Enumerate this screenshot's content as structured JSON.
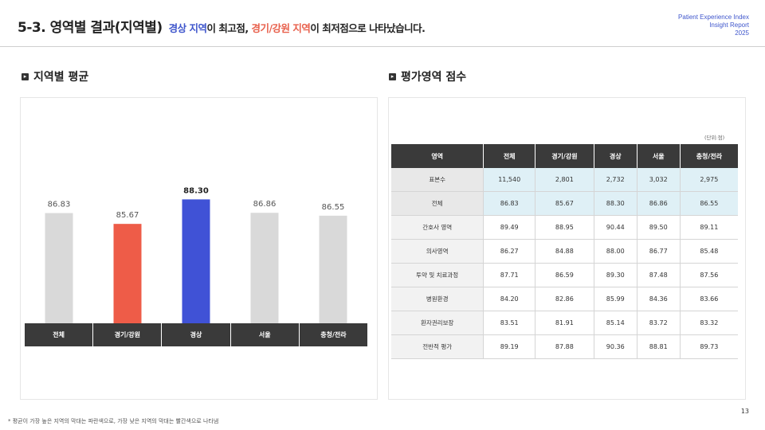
{
  "header": {
    "title": "5-3. 영역별 결과(지역별)",
    "highlight_best": "경상 지역",
    "text_mid": "이 최고점, ",
    "highlight_worst": "경기/강원 지역",
    "text_end": "이 최저점으로 나타났습니다.",
    "brand_line1": "Patient Experience Index",
    "brand_line2": "Insight Report",
    "brand_line3": "2025"
  },
  "left_section": {
    "heading": "지역별 평균"
  },
  "right_section": {
    "heading": "평가영역 점수",
    "unit": "(단위:점)"
  },
  "chart_data": {
    "type": "bar",
    "categories": [
      "전체",
      "경기/강원",
      "경상",
      "서울",
      "충청/전라"
    ],
    "values": [
      86.83,
      85.67,
      88.3,
      86.86,
      86.55
    ],
    "value_labels": [
      "86.83",
      "85.67",
      "88.30",
      "86.86",
      "86.55"
    ],
    "bar_colors": [
      "#d9d9d9",
      "#ee5c48",
      "#4052d6",
      "#d9d9d9",
      "#d9d9d9"
    ],
    "ylim": [
      0,
      100
    ],
    "grid": false
  },
  "table": {
    "headers": [
      "영역",
      "전체",
      "경기/강원",
      "경상",
      "서울",
      "충청/전라"
    ],
    "rows": [
      {
        "label": "표본수",
        "values": [
          "11,540",
          "2,801",
          "2,732",
          "3,032",
          "2,975"
        ],
        "highlight": true
      },
      {
        "label": "전체",
        "values": [
          "86.83",
          "85.67",
          "88.30",
          "86.86",
          "86.55"
        ],
        "highlight": true
      },
      {
        "label": "간호사 영역",
        "values": [
          "89.49",
          "88.95",
          "90.44",
          "89.50",
          "89.11"
        ]
      },
      {
        "label": "의사영역",
        "values": [
          "86.27",
          "84.88",
          "88.00",
          "86.77",
          "85.48"
        ]
      },
      {
        "label": "투약 및 치료과정",
        "values": [
          "87.71",
          "86.59",
          "89.30",
          "87.48",
          "87.56"
        ]
      },
      {
        "label": "병원환경",
        "values": [
          "84.20",
          "82.86",
          "85.99",
          "84.36",
          "83.66"
        ]
      },
      {
        "label": "환자권리보장",
        "values": [
          "83.51",
          "81.91",
          "85.14",
          "83.72",
          "83.32"
        ]
      },
      {
        "label": "전반적 평가",
        "values": [
          "89.19",
          "87.88",
          "90.36",
          "88.81",
          "89.73"
        ]
      }
    ]
  },
  "footer": {
    "note": "* 평균이 가장 높은 지역의 막대는 파란색으로, 가장 낮은 지역의 막대는 빨간색으로 나타냄",
    "page": "13"
  }
}
